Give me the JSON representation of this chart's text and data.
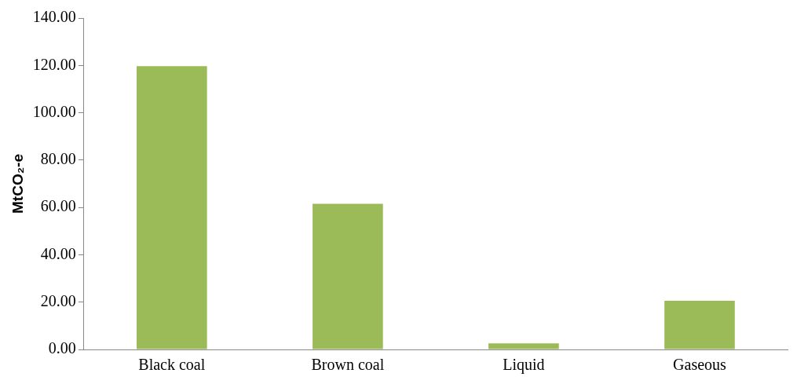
{
  "chart_data": {
    "type": "bar",
    "ylabel": "MtCO₂-e",
    "categories": [
      "Black coal",
      "Brown coal",
      "Liquid",
      "Gaseous"
    ],
    "values": [
      119.7,
      61.5,
      2.6,
      20.6
    ],
    "color": "#9bbb59",
    "ylim": [
      0,
      140
    ],
    "yticks": [
      {
        "value": 0,
        "label": "0.00"
      },
      {
        "value": 20,
        "label": "20.00"
      },
      {
        "value": 40,
        "label": "40.00"
      },
      {
        "value": 60,
        "label": "60.00"
      },
      {
        "value": 80,
        "label": "80.00"
      },
      {
        "value": 100,
        "label": "100.00"
      },
      {
        "value": 120,
        "label": "120.00"
      },
      {
        "value": 140,
        "label": "140.00"
      }
    ],
    "grid": false,
    "legend": false
  }
}
